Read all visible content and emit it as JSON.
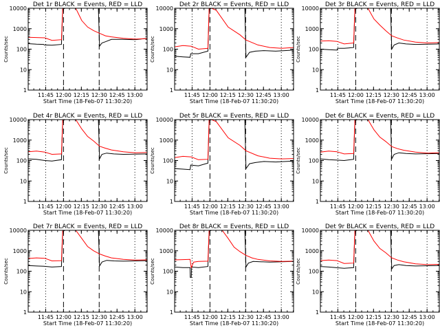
{
  "colors": {
    "events": "#000000",
    "lld": "#ff0000",
    "frame": "#000000",
    "background": "#ffffff"
  },
  "common": {
    "xlabel": "Start Time (18-Feb-07 11:30:20)",
    "ylabel": "Counts/sec",
    "x_ticks": [
      "11:45",
      "12:00",
      "12:15",
      "12:30",
      "12:45",
      "13:00"
    ],
    "y_ticks": [
      "1",
      "10",
      "100",
      "1000",
      "10000"
    ]
  },
  "chart_data": [
    {
      "type": "line",
      "title": "Det 1r BLACK = Events, RED = LLD",
      "x_axis_minutes_from_start": [
        0,
        100
      ],
      "ylim": [
        1,
        10000
      ],
      "y_scale": "log",
      "vlines_dotted": [
        14.7,
        89.7
      ],
      "vlines_dashed": [
        29.7,
        59.7
      ],
      "series": [
        {
          "name": "BLACK = Events",
          "x": [
            0,
            1,
            7,
            13,
            13.5,
            20,
            28,
            29,
            31,
            59,
            60,
            62,
            65,
            70,
            80,
            90,
            100
          ],
          "y": [
            190,
            185,
            175,
            170,
            160,
            155,
            170,
            9000,
            10000,
            10000,
            140,
            200,
            230,
            300,
            300,
            290,
            340
          ]
        },
        {
          "name": "RED = LLD",
          "x": [
            0,
            7,
            14,
            20,
            28,
            29,
            31,
            40,
            45,
            50,
            55,
            60,
            65,
            70,
            80,
            90,
            100
          ],
          "y": [
            380,
            370,
            360,
            270,
            290,
            10000,
            10000,
            10000,
            2500,
            1200,
            800,
            600,
            450,
            400,
            340,
            310,
            330
          ]
        }
      ]
    },
    {
      "type": "line",
      "title": "Det 2r BLACK = Events, RED = LLD",
      "x_axis_minutes_from_start": [
        0,
        100
      ],
      "ylim": [
        1,
        10000
      ],
      "y_scale": "log",
      "vlines_dotted": [
        14.7,
        89.7
      ],
      "vlines_dashed": [
        29.7,
        59.7
      ],
      "series": [
        {
          "name": "BLACK = Events",
          "x": [
            0,
            7,
            13,
            13.5,
            20,
            28,
            29,
            31,
            59,
            60,
            63,
            68,
            75,
            85,
            100
          ],
          "y": [
            45,
            42,
            40,
            60,
            60,
            80,
            9000,
            10000,
            10000,
            40,
            70,
            80,
            85,
            80,
            90
          ]
        },
        {
          "name": "RED = LLD",
          "x": [
            0,
            7,
            14,
            20,
            28,
            29,
            31,
            35,
            45,
            55,
            60,
            70,
            80,
            90,
            100
          ],
          "y": [
            130,
            150,
            140,
            100,
            110,
            10000,
            10000,
            8000,
            1200,
            500,
            280,
            160,
            120,
            110,
            120
          ]
        }
      ]
    },
    {
      "type": "line",
      "title": "Det 3r BLACK = Events, RED = LLD",
      "x_axis_minutes_from_start": [
        0,
        100
      ],
      "ylim": [
        1,
        10000
      ],
      "y_scale": "log",
      "vlines_dotted": [
        14.7,
        89.7
      ],
      "vlines_dashed": [
        29.7,
        59.7
      ],
      "series": [
        {
          "name": "BLACK = Events",
          "x": [
            0,
            7,
            14,
            14.5,
            20,
            28,
            29,
            31,
            59,
            60,
            62,
            66,
            72,
            80,
            100
          ],
          "y": [
            100,
            95,
            90,
            110,
            110,
            120,
            9000,
            10000,
            10000,
            100,
            160,
            200,
            180,
            170,
            180
          ]
        },
        {
          "name": "RED = LLD",
          "x": [
            0,
            7,
            14,
            20,
            28,
            29,
            31,
            40,
            45,
            50,
            55,
            60,
            65,
            70,
            80,
            90,
            100
          ],
          "y": [
            250,
            260,
            240,
            180,
            200,
            10000,
            10000,
            10000,
            3000,
            1500,
            800,
            450,
            350,
            280,
            220,
            200,
            210
          ]
        }
      ]
    },
    {
      "type": "line",
      "title": "Det 4r BLACK = Events, RED = LLD",
      "x_axis_minutes_from_start": [
        0,
        100
      ],
      "ylim": [
        1,
        10000
      ],
      "y_scale": "log",
      "vlines_dotted": [
        14.7,
        89.7
      ],
      "vlines_dashed": [
        29.7,
        59.7
      ],
      "series": [
        {
          "name": "BLACK = Events",
          "x": [
            0,
            7,
            14,
            20,
            28,
            29,
            31,
            59,
            60,
            62,
            66,
            72,
            80,
            100
          ],
          "y": [
            120,
            115,
            100,
            95,
            110,
            9000,
            10000,
            10000,
            120,
            200,
            230,
            210,
            200,
            210
          ]
        },
        {
          "name": "RED = LLD",
          "x": [
            0,
            7,
            14,
            20,
            28,
            29,
            31,
            40,
            45,
            50,
            55,
            60,
            65,
            70,
            80,
            90,
            100
          ],
          "y": [
            270,
            290,
            260,
            200,
            210,
            10000,
            10000,
            10000,
            3500,
            1500,
            900,
            500,
            400,
            330,
            270,
            240,
            250
          ]
        }
      ]
    },
    {
      "type": "line",
      "title": "Det 5r BLACK = Events, RED = LLD",
      "x_axis_minutes_from_start": [
        0,
        100
      ],
      "ylim": [
        1,
        10000
      ],
      "y_scale": "log",
      "vlines_dotted": [
        14.7,
        89.7
      ],
      "vlines_dashed": [
        29.7,
        59.7
      ],
      "series": [
        {
          "name": "BLACK = Events",
          "x": [
            0,
            7,
            13,
            13.5,
            20,
            28,
            29,
            31,
            59,
            60,
            63,
            68,
            75,
            85,
            100
          ],
          "y": [
            40,
            38,
            36,
            60,
            55,
            75,
            9000,
            10000,
            10000,
            40,
            70,
            80,
            90,
            85,
            95
          ]
        },
        {
          "name": "RED = LLD",
          "x": [
            0,
            7,
            14,
            20,
            28,
            29,
            31,
            35,
            45,
            55,
            60,
            70,
            80,
            90,
            100
          ],
          "y": [
            140,
            160,
            150,
            110,
            115,
            10000,
            10000,
            8000,
            1300,
            550,
            300,
            170,
            130,
            120,
            125
          ]
        }
      ]
    },
    {
      "type": "line",
      "title": "Det 6r BLACK = Events, RED = LLD",
      "x_axis_minutes_from_start": [
        0,
        100
      ],
      "ylim": [
        1,
        10000
      ],
      "y_scale": "log",
      "vlines_dotted": [
        14.7,
        89.7
      ],
      "vlines_dashed": [
        29.7,
        59.7
      ],
      "series": [
        {
          "name": "BLACK = Events",
          "x": [
            0,
            7,
            14,
            20,
            28,
            29,
            31,
            59,
            60,
            62,
            66,
            72,
            80,
            100
          ],
          "y": [
            120,
            110,
            105,
            100,
            115,
            9000,
            10000,
            10000,
            120,
            200,
            240,
            220,
            210,
            220
          ]
        },
        {
          "name": "RED = LLD",
          "x": [
            0,
            7,
            14,
            20,
            28,
            29,
            31,
            40,
            45,
            50,
            55,
            60,
            65,
            70,
            80,
            90,
            100
          ],
          "y": [
            260,
            290,
            270,
            210,
            220,
            10000,
            10000,
            10000,
            3200,
            1400,
            850,
            480,
            380,
            320,
            260,
            230,
            240
          ]
        }
      ]
    },
    {
      "type": "line",
      "title": "Det 7r BLACK = Events, RED = LLD",
      "x_axis_minutes_from_start": [
        0,
        100
      ],
      "ylim": [
        1,
        10000
      ],
      "y_scale": "log",
      "vlines_dotted": [
        14.7,
        89.7
      ],
      "vlines_dashed": [
        29.7,
        59.7
      ],
      "series": [
        {
          "name": "BLACK = Events",
          "x": [
            0,
            7,
            13,
            20,
            28,
            29,
            31,
            59,
            60,
            62,
            66,
            72,
            80,
            100
          ],
          "y": [
            190,
            180,
            175,
            160,
            170,
            9000,
            10000,
            10000,
            180,
            280,
            340,
            320,
            310,
            330
          ]
        },
        {
          "name": "RED = LLD",
          "x": [
            0,
            7,
            14,
            20,
            28,
            29,
            31,
            40,
            45,
            50,
            55,
            60,
            65,
            70,
            80,
            90,
            100
          ],
          "y": [
            420,
            450,
            430,
            320,
            330,
            10000,
            10000,
            10000,
            4000,
            1600,
            1000,
            700,
            550,
            450,
            380,
            350,
            360
          ]
        }
      ]
    },
    {
      "type": "line",
      "title": "Det 8r BLACK = Events, RED = LLD",
      "x_axis_minutes_from_start": [
        0,
        100
      ],
      "ylim": [
        1,
        10000
      ],
      "y_scale": "log",
      "vlines_dotted": [
        14.7,
        89.7
      ],
      "vlines_dashed": [
        29.7,
        59.7
      ],
      "series": [
        {
          "name": "BLACK = Events",
          "x": [
            0,
            7,
            13,
            13.2,
            14,
            14.3,
            20,
            28,
            29,
            31,
            59,
            60,
            62,
            66,
            72,
            80,
            100
          ],
          "y": [
            160,
            150,
            150,
            50,
            50,
            160,
            150,
            170,
            9000,
            10000,
            10000,
            160,
            250,
            300,
            290,
            280,
            300
          ]
        },
        {
          "name": "RED = LLD",
          "x": [
            0,
            7,
            13,
            14,
            16,
            20,
            28,
            29,
            31,
            40,
            45,
            50,
            55,
            60,
            65,
            70,
            80,
            90,
            100
          ],
          "y": [
            360,
            370,
            380,
            150,
            280,
            300,
            310,
            10000,
            10000,
            10000,
            4000,
            1500,
            900,
            600,
            450,
            380,
            320,
            300,
            310
          ]
        }
      ]
    },
    {
      "type": "line",
      "title": "Det 9r BLACK = Events, RED = LLD",
      "x_axis_minutes_from_start": [
        0,
        100
      ],
      "ylim": [
        1,
        10000
      ],
      "y_scale": "log",
      "vlines_dotted": [
        14.7,
        89.7
      ],
      "vlines_dashed": [
        29.7,
        59.7
      ],
      "series": [
        {
          "name": "BLACK = Events",
          "x": [
            0,
            7,
            13,
            20,
            28,
            29,
            31,
            59,
            60,
            62,
            66,
            72,
            80,
            100
          ],
          "y": [
            170,
            160,
            150,
            140,
            150,
            9000,
            10000,
            10000,
            130,
            190,
            210,
            190,
            180,
            190
          ]
        },
        {
          "name": "RED = LLD",
          "x": [
            0,
            7,
            14,
            20,
            28,
            29,
            31,
            40,
            45,
            50,
            55,
            60,
            65,
            70,
            80,
            90,
            100
          ],
          "y": [
            330,
            350,
            330,
            240,
            250,
            10000,
            10000,
            10000,
            3000,
            1300,
            800,
            450,
            350,
            290,
            230,
            210,
            215
          ]
        }
      ]
    }
  ]
}
